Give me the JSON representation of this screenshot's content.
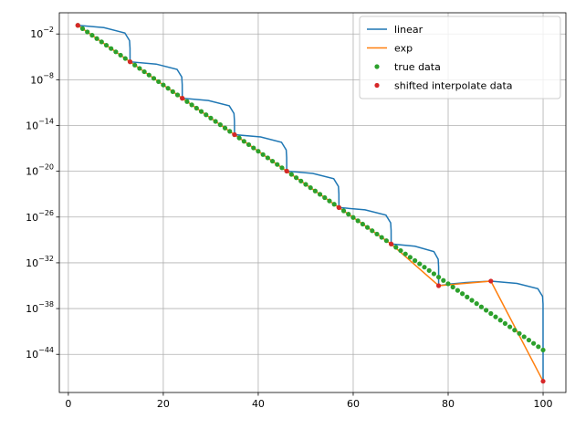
{
  "chart_data": {
    "type": "line",
    "yscale": "log",
    "grid": true,
    "legend": "upper right",
    "xlim": [
      -1.9,
      104.8
    ],
    "ylim": [
      1e-49,
      6
    ],
    "xticks": [
      0,
      20,
      40,
      60,
      80,
      100
    ],
    "yticks": [
      {
        "value": 0.01,
        "label": "10",
        "exponent": "−2"
      },
      {
        "value": 1e-08,
        "label": "10",
        "exponent": "−8"
      },
      {
        "value": 1e-14,
        "label": "10",
        "exponent": "−14"
      },
      {
        "value": 1e-20,
        "label": "10",
        "exponent": "−20"
      },
      {
        "value": 1e-26,
        "label": "10",
        "exponent": "−26"
      },
      {
        "value": 1e-32,
        "label": "10",
        "exponent": "−32"
      },
      {
        "value": 1e-38,
        "label": "10",
        "exponent": "−38"
      },
      {
        "value": 1e-44,
        "label": "10",
        "exponent": "−44"
      }
    ],
    "series": [
      {
        "name": "linear",
        "kind": "line",
        "color": "#1f77b4",
        "x": [
          2,
          7.5,
          11.9,
          12.89,
          12.989,
          13,
          18.5,
          22.9,
          23.89,
          23.989,
          24,
          29.5,
          33.9,
          34.89,
          34.989,
          35,
          40.5,
          44.9,
          45.89,
          45.989,
          46,
          51.5,
          55.9,
          56.89,
          56.989,
          57,
          62.5,
          66.9,
          67.89,
          67.989,
          68,
          73,
          77,
          77.9,
          77.99,
          78,
          80.75,
          83.5,
          89,
          94.5,
          98.9,
          99.89,
          99.989,
          100
        ],
        "values": [
          0.1353,
          0.06765,
          0.01353,
          0.001353,
          0.0001376,
          2.26e-06,
          1.13e-06,
          2.26e-07,
          2.26e-08,
          2.3e-09,
          3.78e-11,
          1.89e-11,
          3.78e-12,
          3.78e-13,
          3.84e-14,
          6.31e-16,
          3.16e-16,
          6.31e-17,
          6.31e-18,
          6.32e-19,
          1.05e-20,
          5.25e-21,
          1.05e-21,
          1.05e-22,
          1.05e-23,
          1.77e-25,
          8.85e-26,
          1.77e-26,
          1.77e-27,
          1.77e-28,
          2.96e-30,
          1.48e-30,
          2.96e-31,
          2.96e-32,
          2.97e-33,
          1e-35,
          1.75e-35,
          2.5e-35,
          4e-35,
          2e-35,
          4e-36,
          4e-37,
          4e-38,
          3e-48
        ]
      },
      {
        "name": "exp",
        "kind": "line",
        "color": "#ff7f0e",
        "x": [
          2,
          13,
          24,
          35,
          46,
          57,
          68,
          78,
          89,
          100
        ],
        "values": [
          0.1353,
          2.26e-06,
          3.78e-11,
          6.31e-16,
          1.05e-20,
          1.77e-25,
          2.96e-30,
          1e-35,
          4e-35,
          3e-48
        ]
      },
      {
        "name": "true data",
        "kind": "scatter",
        "color": "#2ca02c",
        "x": [
          2,
          3,
          4,
          5,
          6,
          7,
          8,
          9,
          10,
          11,
          12,
          13,
          14,
          15,
          16,
          17,
          18,
          19,
          20,
          21,
          22,
          23,
          24,
          25,
          26,
          27,
          28,
          29,
          30,
          31,
          32,
          33,
          34,
          35,
          36,
          37,
          38,
          39,
          40,
          41,
          42,
          43,
          44,
          45,
          46,
          47,
          48,
          49,
          50,
          51,
          52,
          53,
          54,
          55,
          56,
          57,
          58,
          59,
          60,
          61,
          62,
          63,
          64,
          65,
          66,
          67,
          68,
          69,
          70,
          71,
          72,
          73,
          74,
          75,
          76,
          77,
          78,
          79,
          80,
          81,
          82,
          83,
          84,
          85,
          86,
          87,
          88,
          89,
          90,
          91,
          92,
          93,
          94,
          95,
          96,
          97,
          98,
          99,
          100
        ],
        "values": [
          0.1353,
          0.04979,
          0.01832,
          0.006738,
          0.002479,
          0.0009119,
          0.0003355,
          0.0001234,
          4.54e-05,
          1.67e-05,
          6.144e-06,
          2.26e-06,
          8.317e-07,
          3.059e-07,
          1.125e-07,
          4.14e-08,
          1.523e-08,
          5.603e-09,
          2.061e-09,
          7.583e-10,
          2.789e-10,
          1.026e-10,
          3.775e-11,
          1.389e-11,
          5.109e-12,
          1.88e-12,
          6.914e-13,
          2.543e-13,
          9.358e-14,
          3.443e-14,
          1.266e-14,
          4.659e-15,
          1.714e-15,
          6.305e-16,
          2.32e-16,
          8.534e-17,
          3.139e-17,
          1.155e-17,
          4.248e-18,
          1.563e-18,
          5.748e-19,
          2.115e-19,
          7.782e-20,
          2.863e-20,
          1.053e-20,
          3.874e-21,
          1.425e-21,
          5.242e-22,
          1.929e-22,
          7.097e-23,
          2.61e-23,
          9.605e-24,
          3.534e-24,
          1.3e-24,
          4.782e-25,
          1.759e-25,
          6.472e-26,
          2.38e-26,
          8.756e-27,
          3.221e-27,
          1.185e-27,
          4.36e-28,
          1.604e-28,
          5.9e-29,
          2.171e-29,
          7.985e-30,
          2.938e-30,
          1.08e-30,
          3.975e-31,
          1.462e-31,
          5.378e-32,
          1.979e-32,
          7.282e-33,
          2.678e-33,
          9.854e-34,
          3.625e-34,
          1.334e-34,
          4.905e-35,
          1.805e-35,
          6.641e-36,
          2.442e-36,
          8.987e-37,
          3.307e-37,
          1.216e-37,
          4.475e-38,
          1.646e-38,
          6.056e-39,
          2.227e-39,
          8.194e-40,
          3.015e-40,
          1.109e-40,
          4.08e-41,
          1.501e-41,
          5.521e-42,
          2.031e-42,
          7.472e-43,
          2.749e-43,
          1.011e-43,
          3.72e-44
        ]
      },
      {
        "name": "shifted interpolate data",
        "kind": "scatter",
        "color": "#d62728",
        "x": [
          2,
          13,
          24,
          35,
          46,
          57,
          68,
          78,
          89,
          100
        ],
        "values": [
          0.1353,
          2.26e-06,
          3.78e-11,
          6.31e-16,
          1.05e-20,
          1.77e-25,
          2.96e-30,
          1e-35,
          4e-35,
          3e-48
        ]
      }
    ]
  }
}
